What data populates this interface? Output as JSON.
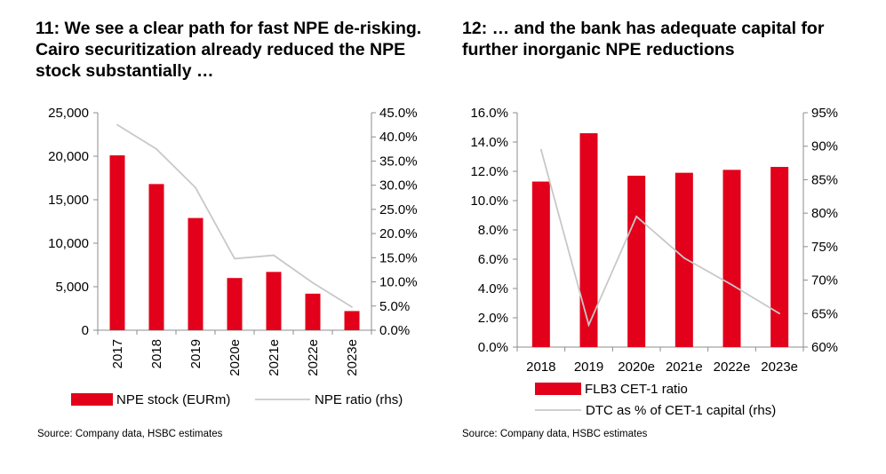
{
  "colors": {
    "bar": "#e2001a",
    "line": "#c8c8c8",
    "axis": "#8c8c8c"
  },
  "left": {
    "title": "11: We see a clear path for fast NPE de-risking. Cairo securitization already reduced the NPE stock substantially …",
    "source": "Source: Company data, HSBC estimates",
    "y_ticks": [
      "25,000",
      "20,000",
      "15,000",
      "10,000",
      "5,000",
      "0"
    ],
    "y2_ticks": [
      "45.0%",
      "40.0%",
      "35.0%",
      "30.0%",
      "25.0%",
      "20.0%",
      "15.0%",
      "10.0%",
      "5.0%",
      "0.0%"
    ],
    "legend": {
      "bars": "NPE stock (EURm)",
      "line": "NPE ratio (rhs)"
    }
  },
  "right": {
    "title": "12: … and the bank has adequate capital for further inorganic NPE reductions",
    "source": "Source: Company data, HSBC estimates",
    "y_ticks": [
      "16.0%",
      "14.0%",
      "12.0%",
      "10.0%",
      "8.0%",
      "6.0%",
      "4.0%",
      "2.0%",
      "0.0%"
    ],
    "y2_ticks": [
      "95%",
      "90%",
      "85%",
      "80%",
      "75%",
      "70%",
      "65%",
      "60%"
    ],
    "legend": {
      "bars": "FLB3 CET-1 ratio",
      "line": "DTC as % of CET-1 capital (rhs)"
    }
  },
  "chart_data": [
    {
      "type": "bar",
      "categories": [
        "2017",
        "2018",
        "2019",
        "2020e",
        "2021e",
        "2022e",
        "2023e"
      ],
      "series": [
        {
          "name": "NPE stock (EURm)",
          "type": "bar",
          "axis": "left",
          "values": [
            20100,
            16800,
            12900,
            6000,
            6700,
            4200,
            2200
          ]
        },
        {
          "name": "NPE ratio (rhs)",
          "type": "line",
          "axis": "right",
          "values": [
            42.5,
            37.5,
            29.5,
            14.8,
            15.5,
            9.8,
            4.8
          ]
        }
      ],
      "ylim": [
        0,
        25000
      ],
      "y2lim": [
        0,
        45
      ],
      "grid": false,
      "legend": "bottom"
    },
    {
      "type": "bar",
      "categories": [
        "2018",
        "2019",
        "2020e",
        "2021e",
        "2022e",
        "2023e"
      ],
      "series": [
        {
          "name": "FLB3 CET-1 ratio",
          "type": "bar",
          "axis": "left",
          "values": [
            11.3,
            14.6,
            11.7,
            11.9,
            12.1,
            12.3
          ]
        },
        {
          "name": "DTC as % of CET-1 capital (rhs)",
          "type": "line",
          "axis": "right",
          "values": [
            89.5,
            63.3,
            79.5,
            73.3,
            69.3,
            65.0
          ]
        }
      ],
      "ylim": [
        0,
        16
      ],
      "y2lim": [
        60,
        95
      ],
      "grid": false,
      "legend": "bottom"
    }
  ]
}
